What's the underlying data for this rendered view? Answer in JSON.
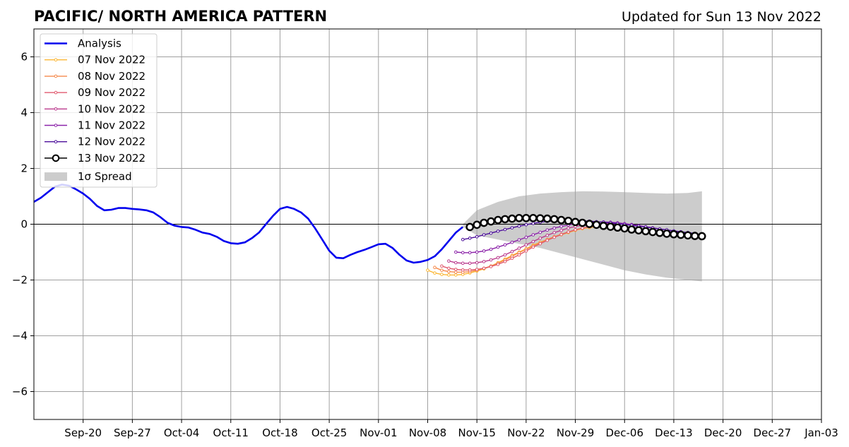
{
  "chart_data": {
    "type": "line",
    "title": "PACIFIC/ NORTH AMERICA PATTERN",
    "subtitle": "Updated for Sun 13 Nov 2022",
    "xlim": [
      "2022-09-13",
      "2023-01-03"
    ],
    "ylim": [
      -7,
      7
    ],
    "x_ticks": [
      {
        "date": "2022-09-20",
        "label": "Sep-20"
      },
      {
        "date": "2022-09-27",
        "label": "Sep-27"
      },
      {
        "date": "2022-10-04",
        "label": "Oct-04"
      },
      {
        "date": "2022-10-11",
        "label": "Oct-11"
      },
      {
        "date": "2022-10-18",
        "label": "Oct-18"
      },
      {
        "date": "2022-10-25",
        "label": "Oct-25"
      },
      {
        "date": "2022-11-01",
        "label": "Nov-01"
      },
      {
        "date": "2022-11-08",
        "label": "Nov-08"
      },
      {
        "date": "2022-11-15",
        "label": "Nov-15"
      },
      {
        "date": "2022-11-22",
        "label": "Nov-22"
      },
      {
        "date": "2022-11-29",
        "label": "Nov-29"
      },
      {
        "date": "2022-12-06",
        "label": "Dec-06"
      },
      {
        "date": "2022-12-13",
        "label": "Dec-13"
      },
      {
        "date": "2022-12-20",
        "label": "Dec-20"
      },
      {
        "date": "2022-12-27",
        "label": "Dec-27"
      },
      {
        "date": "2023-01-03",
        "label": "Jan-03"
      }
    ],
    "y_ticks": [
      {
        "value": 6,
        "label": "6"
      },
      {
        "value": 4,
        "label": "4"
      },
      {
        "value": 2,
        "label": "2"
      },
      {
        "value": 0,
        "label": "0"
      },
      {
        "value": -2,
        "label": "−2"
      },
      {
        "value": -4,
        "label": "−4"
      },
      {
        "value": -6,
        "label": "−6"
      }
    ],
    "grid": true,
    "legend_position": "top-left",
    "legend_spread_label": "1σ Spread",
    "spread": {
      "color": "#cccccc",
      "dates": [
        "2022-11-13",
        "2022-11-15",
        "2022-11-18",
        "2022-11-21",
        "2022-11-24",
        "2022-11-27",
        "2022-11-30",
        "2022-12-03",
        "2022-12-06",
        "2022-12-09",
        "2022-12-12",
        "2022-12-15",
        "2022-12-17"
      ],
      "upper": [
        0.0,
        0.5,
        0.8,
        1.0,
        1.1,
        1.15,
        1.18,
        1.17,
        1.15,
        1.12,
        1.1,
        1.12,
        1.18
      ],
      "lower": [
        -0.1,
        -0.4,
        -0.55,
        -0.7,
        -0.85,
        -1.05,
        -1.25,
        -1.45,
        -1.65,
        -1.8,
        -1.92,
        -2.0,
        -2.05
      ]
    },
    "series": [
      {
        "name": "Analysis",
        "color": "#0000ee",
        "style": "analysis",
        "dates": [
          "2022-09-13",
          "2022-09-14",
          "2022-09-15",
          "2022-09-16",
          "2022-09-17",
          "2022-09-18",
          "2022-09-19",
          "2022-09-20",
          "2022-09-21",
          "2022-09-22",
          "2022-09-23",
          "2022-09-24",
          "2022-09-25",
          "2022-09-26",
          "2022-09-27",
          "2022-09-28",
          "2022-09-29",
          "2022-09-30",
          "2022-10-01",
          "2022-10-02",
          "2022-10-03",
          "2022-10-04",
          "2022-10-05",
          "2022-10-06",
          "2022-10-07",
          "2022-10-08",
          "2022-10-09",
          "2022-10-10",
          "2022-10-11",
          "2022-10-12",
          "2022-10-13",
          "2022-10-14",
          "2022-10-15",
          "2022-10-16",
          "2022-10-17",
          "2022-10-18",
          "2022-10-19",
          "2022-10-20",
          "2022-10-21",
          "2022-10-22",
          "2022-10-23",
          "2022-10-24",
          "2022-10-25",
          "2022-10-26",
          "2022-10-27",
          "2022-10-28",
          "2022-10-29",
          "2022-10-30",
          "2022-10-31",
          "2022-11-01",
          "2022-11-02",
          "2022-11-03",
          "2022-11-04",
          "2022-11-05",
          "2022-11-06",
          "2022-11-07",
          "2022-11-08",
          "2022-11-09",
          "2022-11-10",
          "2022-11-11",
          "2022-11-12",
          "2022-11-13"
        ],
        "values": [
          0.8,
          0.95,
          1.15,
          1.35,
          1.42,
          1.38,
          1.25,
          1.1,
          0.9,
          0.65,
          0.5,
          0.52,
          0.58,
          0.58,
          0.55,
          0.53,
          0.5,
          0.42,
          0.25,
          0.05,
          -0.05,
          -0.1,
          -0.12,
          -0.2,
          -0.3,
          -0.35,
          -0.45,
          -0.6,
          -0.68,
          -0.7,
          -0.65,
          -0.5,
          -0.3,
          0.0,
          0.3,
          0.55,
          0.62,
          0.55,
          0.42,
          0.2,
          -0.15,
          -0.55,
          -0.95,
          -1.2,
          -1.22,
          -1.1,
          -1.0,
          -0.92,
          -0.82,
          -0.72,
          -0.7,
          -0.85,
          -1.1,
          -1.3,
          -1.38,
          -1.35,
          -1.28,
          -1.15,
          -0.9,
          -0.6,
          -0.3,
          -0.1
        ]
      },
      {
        "name": "07 Nov 2022",
        "color": "#fbb735",
        "style": "forecast",
        "dates": [
          "2022-11-08",
          "2022-11-09",
          "2022-11-10",
          "2022-11-11",
          "2022-11-12",
          "2022-11-13",
          "2022-11-14",
          "2022-11-15",
          "2022-11-16",
          "2022-11-17",
          "2022-11-18",
          "2022-11-19",
          "2022-11-20",
          "2022-11-21",
          "2022-11-22",
          "2022-11-23",
          "2022-11-24",
          "2022-11-25",
          "2022-11-26",
          "2022-11-27",
          "2022-11-28",
          "2022-11-29",
          "2022-11-30",
          "2022-12-01",
          "2022-12-02"
        ],
        "values": [
          -1.65,
          -1.75,
          -1.8,
          -1.82,
          -1.82,
          -1.8,
          -1.75,
          -1.68,
          -1.6,
          -1.5,
          -1.38,
          -1.25,
          -1.12,
          -1.0,
          -0.88,
          -0.75,
          -0.65,
          -0.55,
          -0.45,
          -0.38,
          -0.3,
          -0.22,
          -0.16,
          -0.12,
          -0.1
        ]
      },
      {
        "name": "08 Nov 2022",
        "color": "#f5894b",
        "style": "forecast",
        "dates": [
          "2022-11-09",
          "2022-11-10",
          "2022-11-11",
          "2022-11-12",
          "2022-11-13",
          "2022-11-14",
          "2022-11-15",
          "2022-11-16",
          "2022-11-17",
          "2022-11-18",
          "2022-11-19",
          "2022-11-20",
          "2022-11-21",
          "2022-11-22",
          "2022-11-23",
          "2022-11-24",
          "2022-11-25",
          "2022-11-26",
          "2022-11-27",
          "2022-11-28",
          "2022-11-29",
          "2022-11-30",
          "2022-12-01",
          "2022-12-02",
          "2022-12-03"
        ],
        "values": [
          -1.55,
          -1.65,
          -1.7,
          -1.72,
          -1.72,
          -1.7,
          -1.65,
          -1.58,
          -1.5,
          -1.4,
          -1.28,
          -1.15,
          -1.02,
          -0.9,
          -0.78,
          -0.66,
          -0.55,
          -0.45,
          -0.36,
          -0.28,
          -0.2,
          -0.14,
          -0.1,
          -0.07,
          -0.05
        ]
      },
      {
        "name": "09 Nov 2022",
        "color": "#e0596e",
        "style": "forecast",
        "dates": [
          "2022-11-10",
          "2022-11-11",
          "2022-11-12",
          "2022-11-13",
          "2022-11-14",
          "2022-11-15",
          "2022-11-16",
          "2022-11-17",
          "2022-11-18",
          "2022-11-19",
          "2022-11-20",
          "2022-11-21",
          "2022-11-22",
          "2022-11-23",
          "2022-11-24",
          "2022-11-25",
          "2022-11-26",
          "2022-11-27",
          "2022-11-28",
          "2022-11-29",
          "2022-11-30",
          "2022-12-01",
          "2022-12-02",
          "2022-12-03",
          "2022-12-04"
        ],
        "values": [
          -1.5,
          -1.58,
          -1.62,
          -1.64,
          -1.64,
          -1.62,
          -1.58,
          -1.52,
          -1.44,
          -1.34,
          -1.22,
          -1.1,
          -0.96,
          -0.82,
          -0.7,
          -0.58,
          -0.47,
          -0.37,
          -0.28,
          -0.2,
          -0.14,
          -0.09,
          -0.05,
          -0.02,
          0.0
        ]
      },
      {
        "name": "10 Nov 2022",
        "color": "#bb3c8e",
        "style": "forecast",
        "dates": [
          "2022-11-11",
          "2022-11-12",
          "2022-11-13",
          "2022-11-14",
          "2022-11-15",
          "2022-11-16",
          "2022-11-17",
          "2022-11-18",
          "2022-11-19",
          "2022-11-20",
          "2022-11-21",
          "2022-11-22",
          "2022-11-23",
          "2022-11-24",
          "2022-11-25",
          "2022-11-26",
          "2022-11-27",
          "2022-11-28",
          "2022-11-29",
          "2022-11-30",
          "2022-12-01",
          "2022-12-02",
          "2022-12-03",
          "2022-12-04",
          "2022-12-05"
        ],
        "values": [
          -1.32,
          -1.38,
          -1.4,
          -1.4,
          -1.38,
          -1.34,
          -1.28,
          -1.2,
          -1.1,
          -0.98,
          -0.86,
          -0.74,
          -0.62,
          -0.5,
          -0.4,
          -0.3,
          -0.22,
          -0.14,
          -0.08,
          -0.04,
          0.0,
          0.02,
          0.03,
          0.03,
          0.02
        ]
      },
      {
        "name": "11 Nov 2022",
        "color": "#8c23a9",
        "style": "forecast",
        "dates": [
          "2022-11-12",
          "2022-11-13",
          "2022-11-14",
          "2022-11-15",
          "2022-11-16",
          "2022-11-17",
          "2022-11-18",
          "2022-11-19",
          "2022-11-20",
          "2022-11-21",
          "2022-11-22",
          "2022-11-23",
          "2022-11-24",
          "2022-11-25",
          "2022-11-26",
          "2022-11-27",
          "2022-11-28",
          "2022-11-29",
          "2022-11-30",
          "2022-12-01",
          "2022-12-02",
          "2022-12-03",
          "2022-12-04",
          "2022-12-05",
          "2022-12-06",
          "2022-12-07",
          "2022-12-08",
          "2022-12-09",
          "2022-12-10",
          "2022-12-11",
          "2022-12-12",
          "2022-12-13",
          "2022-12-14",
          "2022-12-15",
          "2022-12-16"
        ],
        "values": [
          -1.0,
          -1.02,
          -1.02,
          -1.0,
          -0.96,
          -0.9,
          -0.82,
          -0.74,
          -0.65,
          -0.56,
          -0.47,
          -0.38,
          -0.29,
          -0.21,
          -0.14,
          -0.08,
          -0.03,
          0.02,
          0.05,
          0.07,
          0.08,
          0.08,
          0.07,
          0.05,
          0.02,
          -0.01,
          -0.05,
          -0.09,
          -0.13,
          -0.17,
          -0.21,
          -0.25,
          -0.29,
          -0.32,
          -0.35
        ]
      },
      {
        "name": "12 Nov 2022",
        "color": "#4b0d9a",
        "style": "forecast",
        "dates": [
          "2022-11-13",
          "2022-11-14",
          "2022-11-15",
          "2022-11-16",
          "2022-11-17",
          "2022-11-18",
          "2022-11-19",
          "2022-11-20",
          "2022-11-21",
          "2022-11-22",
          "2022-11-23",
          "2022-11-24",
          "2022-11-25",
          "2022-11-26",
          "2022-11-27",
          "2022-11-28",
          "2022-11-29",
          "2022-11-30",
          "2022-12-01",
          "2022-12-02",
          "2022-12-03",
          "2022-12-04",
          "2022-12-05",
          "2022-12-06",
          "2022-12-07",
          "2022-12-08",
          "2022-12-09",
          "2022-12-10",
          "2022-12-11",
          "2022-12-12",
          "2022-12-13",
          "2022-12-14",
          "2022-12-15",
          "2022-12-16"
        ],
        "values": [
          -0.55,
          -0.5,
          -0.45,
          -0.38,
          -0.32,
          -0.25,
          -0.19,
          -0.13,
          -0.07,
          -0.02,
          0.03,
          0.07,
          0.1,
          0.12,
          0.13,
          0.13,
          0.13,
          0.12,
          0.11,
          0.09,
          0.07,
          0.05,
          0.02,
          -0.01,
          -0.04,
          -0.07,
          -0.1,
          -0.14,
          -0.17,
          -0.2,
          -0.24,
          -0.27,
          -0.3,
          -0.33
        ]
      },
      {
        "name": "13 Nov 2022",
        "color": "#000000",
        "style": "current",
        "dates": [
          "2022-11-14",
          "2022-11-15",
          "2022-11-16",
          "2022-11-17",
          "2022-11-18",
          "2022-11-19",
          "2022-11-20",
          "2022-11-21",
          "2022-11-22",
          "2022-11-23",
          "2022-11-24",
          "2022-11-25",
          "2022-11-26",
          "2022-11-27",
          "2022-11-28",
          "2022-11-29",
          "2022-11-30",
          "2022-12-01",
          "2022-12-02",
          "2022-12-03",
          "2022-12-04",
          "2022-12-05",
          "2022-12-06",
          "2022-12-07",
          "2022-12-08",
          "2022-12-09",
          "2022-12-10",
          "2022-12-11",
          "2022-12-12",
          "2022-12-13",
          "2022-12-14",
          "2022-12-15",
          "2022-12-16",
          "2022-12-17"
        ],
        "values": [
          -0.1,
          -0.02,
          0.05,
          0.1,
          0.15,
          0.18,
          0.2,
          0.22,
          0.22,
          0.22,
          0.21,
          0.2,
          0.18,
          0.15,
          0.12,
          0.08,
          0.05,
          0.01,
          -0.02,
          -0.06,
          -0.09,
          -0.12,
          -0.15,
          -0.19,
          -0.22,
          -0.25,
          -0.28,
          -0.31,
          -0.34,
          -0.36,
          -0.38,
          -0.4,
          -0.42,
          -0.43
        ]
      }
    ]
  }
}
